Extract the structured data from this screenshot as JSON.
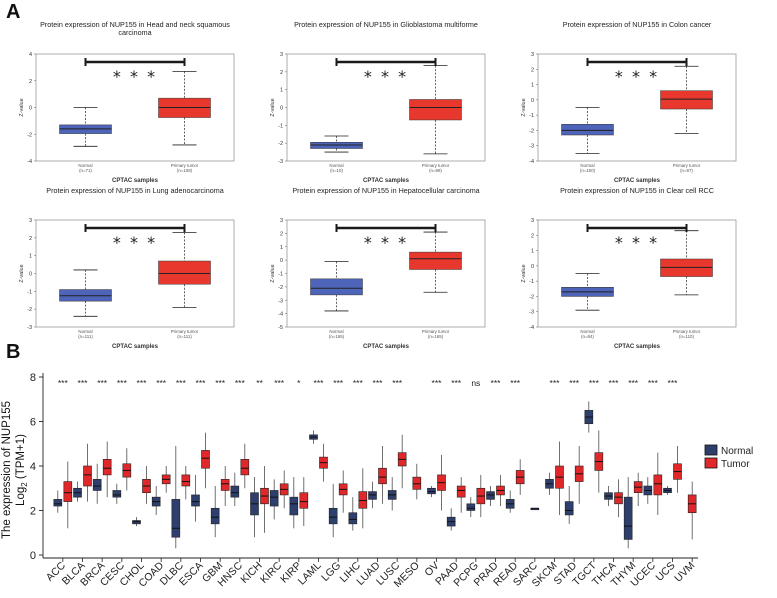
{
  "panels": {
    "a_label": "A",
    "b_label": "B"
  },
  "colors": {
    "cptac_normal": "#4e64b8",
    "cptac_tumor": "#e8382e",
    "tcga_normal": "#2e3f6e",
    "tcga_tumor": "#e0282a",
    "star_bar": "#1a1a1a"
  },
  "cptac": {
    "x_axis_label": "CPTAC samples",
    "y_axis_label": "Z-value",
    "stars": "* * *",
    "plots": [
      {
        "title_line1": "Protein expression of NUP155 in Head and neck squamous",
        "title_line2": "carcinoma",
        "ylim": [
          -4,
          4
        ],
        "yticks": [
          "4",
          "2",
          "0",
          "-2",
          "-4"
        ],
        "normal_label": "Normal",
        "normal_n": "(n=71)",
        "tumor_label": "Primary tumor",
        "tumor_n": "(n=108)",
        "normal_box": {
          "min": -2.9,
          "q1": -1.95,
          "median": -1.6,
          "q3": -1.3,
          "max": 0.0
        },
        "tumor_box": {
          "min": -2.8,
          "q1": -0.75,
          "median": 0.0,
          "q3": 0.7,
          "max": 2.7
        }
      },
      {
        "title_line1": "Protein expression of NUP155 in Glioblastoma multiforme",
        "title_line2": "",
        "ylim": [
          -3,
          3
        ],
        "yticks": [
          "3",
          "2",
          "1",
          "0",
          "-1",
          "-2",
          "-3"
        ],
        "normal_label": "Normal",
        "normal_n": "(n=10)",
        "tumor_label": "Primary tumor",
        "tumor_n": "(n=99)",
        "normal_box": {
          "min": -2.5,
          "q1": -2.3,
          "median": -2.1,
          "q3": -1.95,
          "max": -1.6
        },
        "tumor_box": {
          "min": -2.6,
          "q1": -0.7,
          "median": 0.0,
          "q3": 0.45,
          "max": 2.35
        }
      },
      {
        "title_line1": "Protein expression of NUP155 in Colon cancer",
        "title_line2": "",
        "ylim": [
          -4,
          3
        ],
        "yticks": [
          "3",
          "2",
          "1",
          "0",
          "-1",
          "-2",
          "-3",
          "-4"
        ],
        "normal_label": "Normal",
        "normal_n": "(n=100)",
        "tumor_label": "Primary tumor",
        "tumor_n": "(n=97)",
        "normal_box": {
          "min": -3.5,
          "q1": -2.3,
          "median": -2.0,
          "q3": -1.6,
          "max": -0.5
        },
        "tumor_box": {
          "min": -2.2,
          "q1": -0.6,
          "median": 0.05,
          "q3": 0.6,
          "max": 2.2
        }
      },
      {
        "title_line1": "Protein expression of NUP155 in Lung adenocarcinoma",
        "title_line2": "",
        "ylim": [
          -3,
          3
        ],
        "yticks": [
          "3",
          "2",
          "1",
          "0",
          "-1",
          "-2",
          "-3"
        ],
        "normal_label": "Normal",
        "normal_n": "(n=111)",
        "tumor_label": "Primary tumor",
        "tumor_n": "(n=111)",
        "normal_box": {
          "min": -2.4,
          "q1": -1.55,
          "median": -1.25,
          "q3": -0.9,
          "max": 0.2
        },
        "tumor_box": {
          "min": -1.9,
          "q1": -0.6,
          "median": 0.0,
          "q3": 0.7,
          "max": 2.3
        }
      },
      {
        "title_line1": "Protein expression of NUP155 in Hepatocellular carcinoma",
        "title_line2": "",
        "ylim": [
          -5,
          3
        ],
        "yticks": [
          "3",
          "2",
          "1",
          "0",
          "-1",
          "-2",
          "-3",
          "-4",
          "-5"
        ],
        "normal_label": "Normal",
        "normal_n": "(n=165)",
        "tumor_label": "Primary tumor",
        "tumor_n": "(n=165)",
        "normal_box": {
          "min": -3.8,
          "q1": -2.6,
          "median": -2.1,
          "q3": -1.4,
          "max": -0.1
        },
        "tumor_box": {
          "min": -2.4,
          "q1": -0.7,
          "median": 0.1,
          "q3": 0.6,
          "max": 2.1
        }
      },
      {
        "title_line1": "Protein expression of NUP155 in Clear cell RCC",
        "title_line2": "",
        "ylim": [
          -4,
          3
        ],
        "yticks": [
          "3",
          "2",
          "1",
          "0",
          "-1",
          "-2",
          "-3",
          "-4"
        ],
        "normal_label": "Normal",
        "normal_n": "(n=84)",
        "tumor_label": "Primary tumor",
        "tumor_n": "(n=110)",
        "normal_box": {
          "min": -2.9,
          "q1": -2.0,
          "median": -1.7,
          "q3": -1.4,
          "max": -0.5
        },
        "tumor_box": {
          "min": -1.9,
          "q1": -0.7,
          "median": -0.1,
          "q3": 0.45,
          "max": 2.3
        }
      }
    ]
  },
  "chart_data": {
    "type": "box",
    "ylabel_line1": "The expression of NUP155",
    "ylabel_line2": "Log2 (TPM+1)",
    "ylim": [
      0,
      8
    ],
    "yticks": [
      "0",
      "2",
      "4",
      "6",
      "8"
    ],
    "legend": {
      "normal": "Normal",
      "tumor": "Tumor"
    },
    "legend_position": "right",
    "categories": [
      "ACC",
      "BLCA",
      "BRCA",
      "CESC",
      "CHOL",
      "COAD",
      "DLBC",
      "ESCA",
      "GBM",
      "HNSC",
      "KICH",
      "KIRC",
      "KIRP",
      "LAML",
      "LGG",
      "LIHC",
      "LUAD",
      "LUSC",
      "MESO",
      "OV",
      "PAAD",
      "PCPG",
      "PRAD",
      "READ",
      "SARC",
      "SKCM",
      "STAD",
      "TGCT",
      "THCA",
      "THYM",
      "UCEC",
      "UCS",
      "UVM"
    ],
    "significance": [
      "***",
      "***",
      "***",
      "***",
      "***",
      "***",
      "***",
      "***",
      "***",
      "***",
      "**",
      "***",
      "*",
      "***",
      "***",
      "***",
      "***",
      "***",
      "",
      "***",
      "***",
      "ns",
      "***",
      "***",
      "",
      "***",
      "***",
      "***",
      "***",
      "***",
      "***",
      "***",
      ""
    ],
    "normal": [
      [
        1.9,
        2.2,
        2.3,
        2.5,
        2.9
      ],
      [
        2.4,
        2.6,
        2.8,
        3.0,
        3.3
      ],
      [
        2.3,
        2.9,
        3.1,
        3.4,
        4.1
      ],
      [
        2.3,
        2.6,
        2.7,
        2.9,
        3.2
      ],
      [
        1.3,
        1.4,
        1.5,
        1.55,
        1.7
      ],
      [
        1.8,
        2.2,
        2.4,
        2.6,
        3.1
      ],
      [
        0.3,
        0.8,
        1.2,
        2.5,
        4.9
      ],
      [
        1.5,
        2.2,
        2.4,
        2.7,
        3.6
      ],
      [
        0.8,
        1.4,
        1.7,
        2.1,
        3.1
      ],
      [
        2.2,
        2.6,
        2.8,
        3.1,
        3.7
      ],
      [
        0.8,
        1.8,
        2.3,
        2.8,
        3.5
      ],
      [
        1.6,
        2.2,
        2.6,
        2.9,
        3.4
      ],
      [
        1.2,
        1.8,
        2.3,
        2.6,
        3.5
      ],
      [
        5.0,
        5.2,
        5.3,
        5.4,
        5.6
      ],
      [
        0.8,
        1.4,
        1.7,
        2.1,
        3.2
      ],
      [
        1.1,
        1.4,
        1.6,
        1.9,
        2.6
      ],
      [
        2.1,
        2.5,
        2.7,
        2.85,
        3.3
      ],
      [
        2.0,
        2.5,
        2.7,
        2.9,
        3.5
      ],
      null,
      [
        2.6,
        2.75,
        2.85,
        3.0,
        3.1
      ],
      [
        1.1,
        1.3,
        1.5,
        1.7,
        2.1
      ],
      [
        1.7,
        2.0,
        2.1,
        2.3,
        2.6
      ],
      [
        2.2,
        2.5,
        2.7,
        2.85,
        3.1
      ],
      [
        1.9,
        2.1,
        2.3,
        2.5,
        2.9
      ],
      [
        2.1,
        2.1,
        2.1,
        2.1,
        2.1
      ],
      [
        2.7,
        3.0,
        3.2,
        3.4,
        3.7
      ],
      [
        1.4,
        1.8,
        2.0,
        2.4,
        3.1
      ],
      [
        5.5,
        5.9,
        6.2,
        6.5,
        6.9
      ],
      [
        2.2,
        2.5,
        2.65,
        2.8,
        3.1
      ],
      [
        0.3,
        0.7,
        1.3,
        2.6,
        3.5
      ],
      [
        2.3,
        2.7,
        2.9,
        3.1,
        3.5
      ],
      [
        2.7,
        2.8,
        2.9,
        3.0,
        3.1
      ],
      null
    ],
    "tumor": [
      [
        1.2,
        2.4,
        2.8,
        3.3,
        4.2
      ],
      [
        2.4,
        3.1,
        3.6,
        4.0,
        5.0
      ],
      [
        2.6,
        3.6,
        3.9,
        4.3,
        5.1
      ],
      [
        2.9,
        3.5,
        3.8,
        4.1,
        4.8
      ],
      [
        2.3,
        2.8,
        3.1,
        3.4,
        4.0
      ],
      [
        2.8,
        3.2,
        3.4,
        3.6,
        4.0
      ],
      [
        2.5,
        3.1,
        3.3,
        3.6,
        4.0
      ],
      [
        3.0,
        3.9,
        4.35,
        4.7,
        5.5
      ],
      [
        2.2,
        2.9,
        3.2,
        3.4,
        4.0
      ],
      [
        3.0,
        3.6,
        3.9,
        4.3,
        5.0
      ],
      [
        1.0,
        2.3,
        2.65,
        3.0,
        4.0
      ],
      [
        2.1,
        2.7,
        2.95,
        3.2,
        3.8
      ],
      [
        1.3,
        2.1,
        2.4,
        2.8,
        3.5
      ],
      [
        3.3,
        3.9,
        4.15,
        4.4,
        5.0
      ],
      [
        1.9,
        2.7,
        2.95,
        3.2,
        3.8
      ],
      [
        1.2,
        2.1,
        2.45,
        2.85,
        3.9
      ],
      [
        2.3,
        3.2,
        3.5,
        3.9,
        4.9
      ],
      [
        3.0,
        4.0,
        4.3,
        4.6,
        5.4
      ],
      [
        2.5,
        2.95,
        3.2,
        3.5,
        4.1
      ],
      [
        2.0,
        2.9,
        3.25,
        3.6,
        4.5
      ],
      [
        1.9,
        2.6,
        2.9,
        3.1,
        3.5
      ],
      [
        1.7,
        2.3,
        2.65,
        3.0,
        3.6
      ],
      [
        2.2,
        2.7,
        2.9,
        3.1,
        3.6
      ],
      [
        2.7,
        3.2,
        3.5,
        3.8,
        4.3
      ],
      null,
      [
        1.8,
        3.0,
        3.5,
        4.0,
        5.1
      ],
      [
        2.3,
        3.3,
        3.65,
        4.0,
        4.9
      ],
      [
        2.8,
        3.8,
        4.2,
        4.6,
        5.6
      ],
      [
        1.7,
        2.3,
        2.6,
        2.8,
        3.4
      ],
      [
        2.2,
        2.8,
        3.05,
        3.3,
        3.7
      ],
      [
        1.8,
        2.7,
        3.2,
        3.6,
        4.6
      ],
      [
        2.8,
        3.4,
        3.75,
        4.1,
        4.9
      ],
      [
        0.7,
        1.9,
        2.3,
        2.7,
        3.3
      ]
    ]
  }
}
